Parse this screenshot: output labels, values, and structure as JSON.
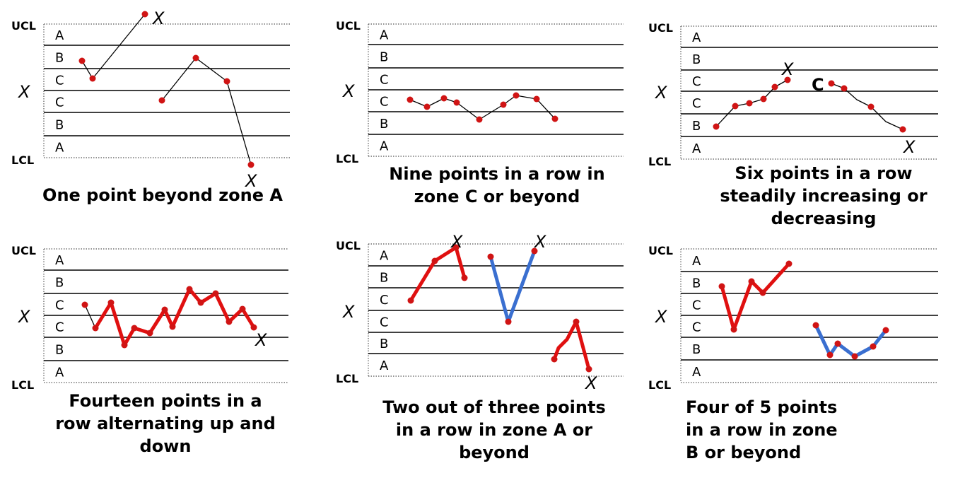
{
  "labels": {
    "ucl": "UCL",
    "lcl": "LCL",
    "center": "X",
    "mark": "X",
    "zones": [
      "A",
      "B",
      "C",
      "C",
      "B",
      "A"
    ]
  },
  "colors": {
    "red": "#e01010",
    "blue": "#3a6fd0",
    "point": "#d01414",
    "line": "#000000"
  },
  "panels": [
    {
      "name": "one-point-beyond-zone-a",
      "caption": [
        "One point beyond zone A"
      ],
      "marks": [
        "point-above-ucl",
        "point-below-lcl"
      ]
    },
    {
      "name": "nine-points-zone-c",
      "caption": [
        "Nine points in a row in",
        "zone C or beyond"
      ],
      "marks": []
    },
    {
      "name": "six-points-trend",
      "caption": [
        "Six points in a row",
        "steadily increasing or",
        "decreasing"
      ],
      "marks": [
        "end-of-increase",
        "end-of-decrease"
      ],
      "extra_label": "C"
    },
    {
      "name": "fourteen-points-alternating",
      "caption": [
        "Fourteen points in a",
        "row alternating up and",
        "down"
      ],
      "marks": [
        "fourteenth-point"
      ]
    },
    {
      "name": "two-of-three-zone-a",
      "caption": [
        "Two out of three points",
        "in a row in zone A or",
        "beyond"
      ],
      "marks": [
        "upper-red-group",
        "upper-blue-group",
        "lower-red-group"
      ]
    },
    {
      "name": "four-of-five-zone-b",
      "caption": [
        "Four of 5 points",
        "in a row in zone",
        "B or beyond"
      ],
      "marks": []
    }
  ]
}
